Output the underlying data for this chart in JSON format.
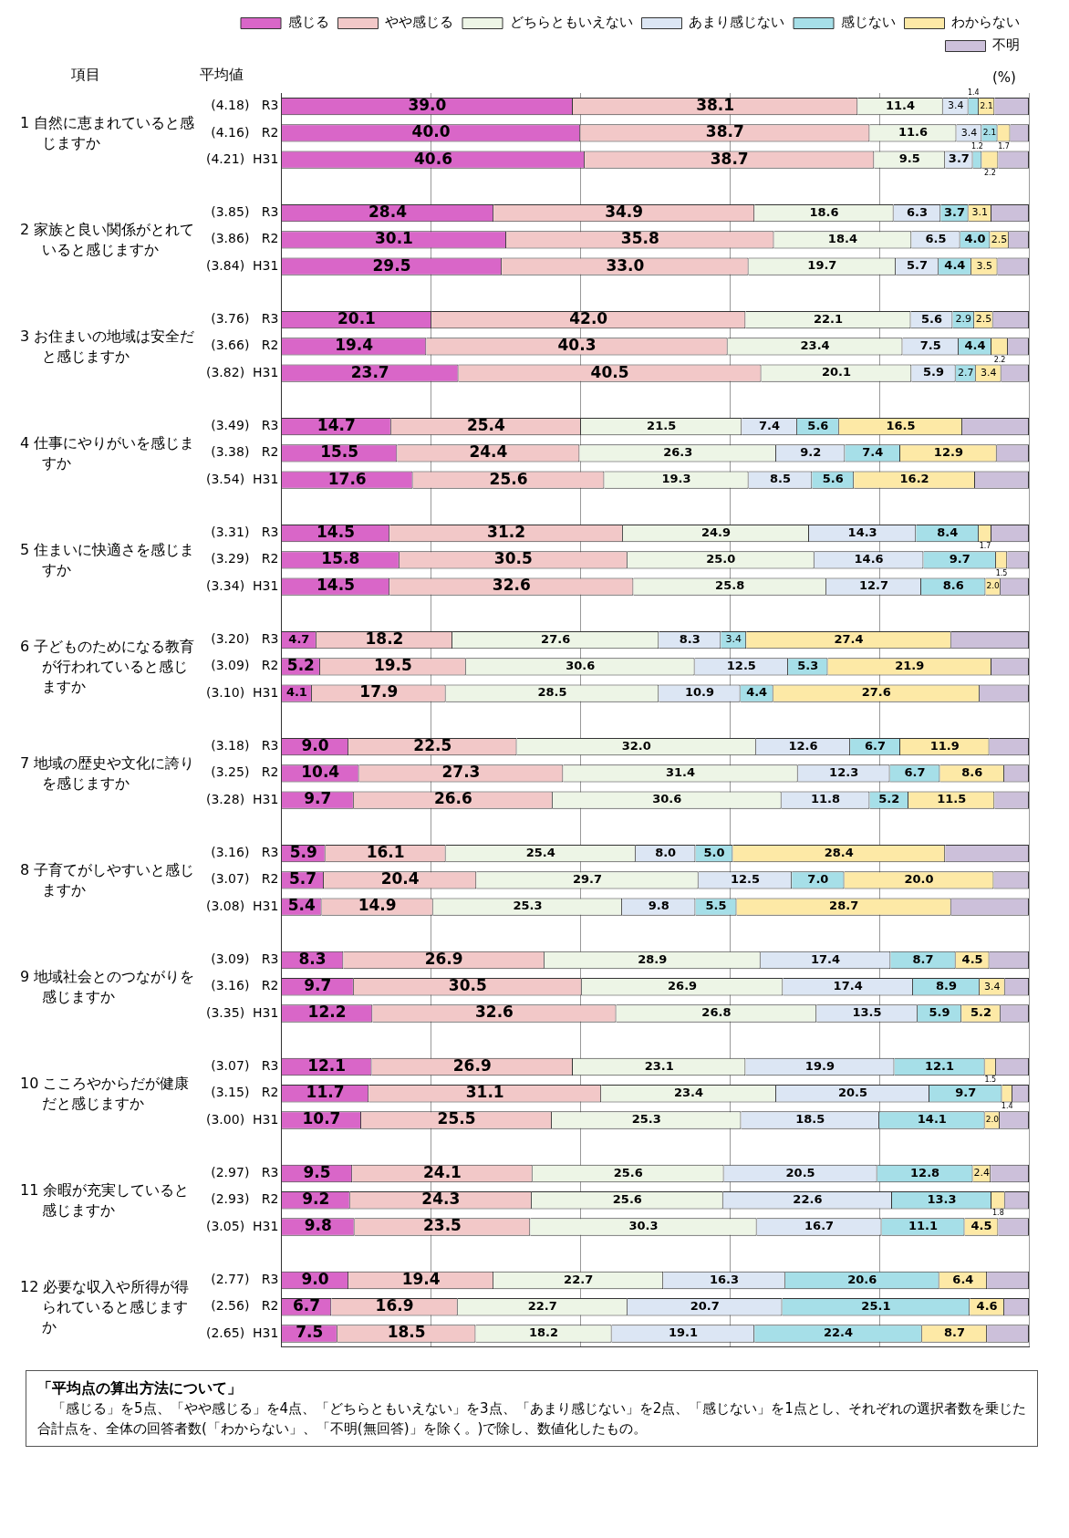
{
  "chart_data": {
    "type": "bar",
    "orientation": "horizontal",
    "stacked": true,
    "xlabel": "(%)",
    "categories": [
      "(4.18)   R3",
      "(4.16)   R2",
      "(4.21)  H31",
      null,
      "(3.85)   R3",
      "(3.86)   R2",
      "(3.84)  H31",
      null,
      "(3.76)   R3",
      "(3.66)   R2",
      "(3.82)  H31",
      null,
      "(3.49)   R3",
      "(3.38)   R2",
      "(3.54)  H31",
      null,
      "(3.31)   R3",
      "(3.29)   R2",
      "(3.34)  H31",
      null,
      "(3.20)   R3",
      "(3.09)   R2",
      "(3.10)  H31",
      null,
      "(3.18)   R3",
      "(3.25)   R2",
      "(3.28)  H31",
      null,
      "(3.16)   R3",
      "(3.07)   R2",
      "(3.08)  H31",
      null,
      "(3.09)   R3",
      "(3.16)   R2",
      "(3.35)  H31",
      null,
      "(3.07)   R3",
      "(3.15)   R2",
      "(3.00)  H31",
      null,
      "(2.97)   R3",
      "(2.93)   R2",
      "(3.05)  H31",
      null,
      "(2.77)   R3",
      "(2.56)   R2",
      "(2.65)  H31"
    ],
    "series": [
      {
        "name": "感じる",
        "color": "#d966c8",
        "values": [
          39.0,
          40.0,
          40.6,
          null,
          28.4,
          30.1,
          29.5,
          null,
          20.1,
          19.4,
          23.7,
          null,
          14.7,
          15.5,
          17.6,
          null,
          14.5,
          15.8,
          14.5,
          null,
          4.7,
          5.2,
          4.1,
          null,
          9.0,
          10.4,
          9.7,
          null,
          5.9,
          5.7,
          5.4,
          null,
          8.3,
          9.7,
          12.2,
          null,
          12.1,
          11.7,
          10.7,
          null,
          9.5,
          9.2,
          9.8,
          null,
          9.0,
          6.7,
          7.5
        ],
        "value_labels": [
          "39.0",
          "40.0",
          "40.6",
          null,
          "28.4",
          "30.1",
          "29.5",
          null,
          "20.1",
          "19.4",
          "23.7",
          null,
          "14.7",
          "15.5",
          "17.6",
          null,
          "14.5",
          "15.8",
          "14.5",
          null,
          "4.7",
          "5.2",
          "4.1",
          null,
          "9.0",
          "10.4",
          "9.7",
          null,
          "5.9",
          "5.7",
          "5.4",
          null,
          "8.3",
          "9.7",
          "12.2",
          null,
          "12.1",
          "11.7",
          "10.7",
          null,
          "9.5",
          "9.2",
          "9.8",
          null,
          "9.0",
          "6.7",
          "7.5"
        ]
      },
      {
        "name": "やや感じる",
        "color": "#f2c8c8",
        "values": [
          38.1,
          38.7,
          38.7,
          null,
          34.9,
          35.8,
          33.0,
          null,
          42.0,
          40.3,
          40.5,
          null,
          25.4,
          24.4,
          25.6,
          null,
          31.2,
          30.5,
          32.6,
          null,
          18.2,
          19.5,
          17.9,
          null,
          22.5,
          27.3,
          26.6,
          null,
          16.1,
          20.4,
          14.9,
          null,
          26.9,
          30.5,
          32.6,
          null,
          26.9,
          31.1,
          25.5,
          null,
          24.1,
          24.3,
          23.5,
          null,
          19.4,
          16.9,
          18.5
        ],
        "value_labels": [
          "38.1",
          "38.7",
          "38.7",
          null,
          "34.9",
          "35.8",
          "33.0",
          null,
          "42.0",
          "40.3",
          "40.5",
          null,
          "25.4",
          "24.4",
          "25.6",
          null,
          "31.2",
          "30.5",
          "32.6",
          null,
          "18.2",
          "19.5",
          "17.9",
          null,
          "22.5",
          "27.3",
          "26.6",
          null,
          "16.1",
          "20.4",
          "14.9",
          null,
          "26.9",
          "30.5",
          "32.6",
          null,
          "26.9",
          "31.1",
          "25.5",
          null,
          "24.1",
          "24.3",
          "23.5",
          null,
          "19.4",
          "16.9",
          "18.5"
        ]
      },
      {
        "name": "どちらともいえない",
        "color": "#edf5e6",
        "values": [
          11.4,
          11.6,
          9.5,
          null,
          18.6,
          18.4,
          19.7,
          null,
          22.1,
          23.4,
          20.1,
          null,
          21.5,
          26.3,
          19.3,
          null,
          24.9,
          25.0,
          25.8,
          null,
          27.6,
          30.6,
          28.5,
          null,
          32.0,
          31.4,
          30.6,
          null,
          25.4,
          29.7,
          25.3,
          null,
          28.9,
          26.9,
          26.8,
          null,
          23.1,
          23.4,
          25.3,
          null,
          25.6,
          25.6,
          30.3,
          null,
          22.7,
          22.7,
          18.2
        ],
        "value_labels": [
          "11.4",
          "11.6",
          "9.5",
          null,
          "18.6",
          "18.4",
          "19.7",
          null,
          "22.1",
          "23.4",
          "20.1",
          null,
          "21.5",
          "26.3",
          "19.3",
          null,
          "24.9",
          "25.0",
          "25.8",
          null,
          "27.6",
          "30.6",
          "28.5",
          null,
          "32.0",
          "31.4",
          "30.6",
          null,
          "25.4",
          "29.7",
          "25.3",
          null,
          "28.9",
          "26.9",
          "26.8",
          null,
          "23.1",
          "23.4",
          "25.3",
          null,
          "25.6",
          "25.6",
          "30.3",
          null,
          "22.7",
          "22.7",
          "18.2"
        ]
      },
      {
        "name": "あまり感じない",
        "color": "#dce6f4",
        "values": [
          3.4,
          3.4,
          3.7,
          null,
          6.3,
          6.5,
          5.7,
          null,
          5.6,
          7.5,
          5.9,
          null,
          7.4,
          9.2,
          8.5,
          null,
          14.3,
          14.6,
          12.7,
          null,
          8.3,
          12.5,
          10.9,
          null,
          12.6,
          12.3,
          11.8,
          null,
          8.0,
          12.5,
          9.8,
          null,
          17.4,
          17.4,
          13.5,
          null,
          19.9,
          20.5,
          18.5,
          null,
          20.5,
          22.6,
          16.7,
          null,
          16.3,
          20.7,
          19.1
        ],
        "value_labels": [
          "3.4",
          "3.4",
          "3.7",
          null,
          "6.3",
          "6.5",
          "5.7",
          null,
          "5.6",
          "7.5",
          "5.9",
          null,
          "7.4",
          "9.2",
          "8.5",
          null,
          "14.3",
          "14.6",
          "12.7",
          null,
          "8.3",
          "12.5",
          "10.9",
          null,
          "12.6",
          "12.3",
          "11.8",
          null,
          "8.0",
          "12.5",
          "9.8",
          null,
          "17.4",
          "17.4",
          "13.5",
          null,
          "19.9",
          "20.5",
          "18.5",
          null,
          "20.5",
          "22.6",
          "16.7",
          null,
          "16.3",
          "20.7",
          "19.1"
        ]
      },
      {
        "name": "感じない",
        "color": "#a6dfe8",
        "values": [
          1.4,
          2.1,
          1.2,
          null,
          3.7,
          4.0,
          4.4,
          null,
          2.9,
          4.4,
          2.7,
          null,
          5.6,
          7.4,
          5.6,
          null,
          8.4,
          9.7,
          8.6,
          null,
          3.4,
          5.3,
          4.4,
          null,
          6.7,
          6.7,
          5.2,
          null,
          5.0,
          7.0,
          5.5,
          null,
          8.7,
          8.9,
          5.9,
          null,
          12.1,
          9.7,
          14.1,
          null,
          12.8,
          13.3,
          11.1,
          null,
          20.6,
          25.1,
          22.4
        ],
        "value_labels": [
          "1.4",
          "2.1",
          "1.2",
          null,
          "3.7",
          "4.0",
          "4.4",
          null,
          "2.9",
          "4.4",
          "2.7",
          null,
          "5.6",
          "7.4",
          "5.6",
          null,
          "8.4",
          "9.7",
          "8.6",
          null,
          "3.4",
          "5.3",
          "4.4",
          null,
          "6.7",
          "6.7",
          "5.2",
          null,
          "5.0",
          "7.0",
          "5.5",
          null,
          "8.7",
          "8.9",
          "5.9",
          null,
          "12.1",
          "9.7",
          "14.1",
          null,
          "12.8",
          "13.3",
          "11.1",
          null,
          "20.6",
          "25.1",
          "22.4"
        ]
      },
      {
        "name": "わからない",
        "color": "#fde9a6",
        "values": [
          2.1,
          1.7,
          2.2,
          null,
          3.1,
          2.5,
          3.5,
          null,
          2.5,
          2.2,
          3.4,
          null,
          16.5,
          12.9,
          16.2,
          null,
          1.7,
          1.5,
          2.0,
          null,
          27.4,
          21.9,
          27.6,
          null,
          11.9,
          8.6,
          11.5,
          null,
          28.4,
          20.0,
          28.7,
          null,
          4.5,
          3.4,
          5.2,
          null,
          1.5,
          1.4,
          2.0,
          null,
          2.4,
          1.8,
          4.5,
          null,
          6.4,
          4.6,
          8.7
        ],
        "value_labels": [
          "2.1",
          "1.7",
          "2.2",
          null,
          "3.1",
          "2.5",
          "3.5",
          null,
          "2.5",
          "2.2",
          "3.4",
          null,
          "16.5",
          "12.9",
          "16.2",
          null,
          "1.7",
          "1.5",
          "2.0",
          null,
          "27.4",
          "21.9",
          "27.6",
          null,
          "11.9",
          "8.6",
          "11.5",
          null,
          "28.4",
          "20.0",
          "28.7",
          null,
          "4.5",
          "3.4",
          "5.2",
          null,
          "1.5",
          "1.4",
          "2.0",
          null,
          "2.4",
          "1.8",
          "4.5",
          null,
          "6.4",
          "4.6",
          "8.7"
        ]
      },
      {
        "name": "不明",
        "color": "#ccc0da",
        "values": [
          4.6,
          2.5,
          4.1,
          null,
          5.0,
          2.7,
          4.2,
          null,
          4.8,
          2.8,
          3.7,
          null,
          8.9,
          4.3,
          7.2,
          null,
          5.0,
          2.9,
          3.8,
          null,
          10.4,
          5.0,
          6.6,
          null,
          5.3,
          3.3,
          4.6,
          null,
          11.2,
          4.7,
          10.4,
          null,
          5.3,
          3.2,
          3.8,
          null,
          4.4,
          2.2,
          3.9,
          null,
          5.1,
          3.2,
          4.1,
          null,
          5.6,
          3.3,
          5.6
        ]
      }
    ],
    "xlim": [
      0,
      100
    ],
    "xticks": [
      {
        "value": 0,
        "label": null
      },
      {
        "value": 20,
        "label": null
      },
      {
        "value": 40,
        "label": null
      },
      {
        "value": 60,
        "label": null
      },
      {
        "value": 80,
        "label": null
      },
      {
        "value": 100,
        "label": null
      }
    ],
    "tick_labels": "y",
    "grid": "x",
    "legend": "top",
    "annotations": [
      "項目",
      "平均値",
      "1 自然に恵まれていると感じますか",
      "2 家族と良い関係がとれていると感じますか",
      "3 お住まいの地域は安全だと感じますか",
      "4 仕事にやりがいを感じますか",
      "5 住まいに快適さを感じますか",
      "6 子どものためになる教育が行われていると感じますか",
      "7 地域の歴史や文化に誇りを感じますか",
      "8 子育てがしやすいと感じますか",
      "9 地域社会とのつながりを感じますか",
      "10 こころやからだが健康だと感じますか",
      "11 余暇が充実していると感じますか",
      "12 必要な収入や所得が得られていると感じますか",
      "「平均点の算出方法について」",
      "「感じる」を5点、「やや感じる」を4点、「どちらともいえない」を3点、「あまり感じない」を2点、「感じない」を1点とし、それぞれの選択者数を乗じた合計点を、全体の回答者数(「わからない」、「不明(無回答)」を除く。)で除し、数値化したもの。"
    ]
  }
}
